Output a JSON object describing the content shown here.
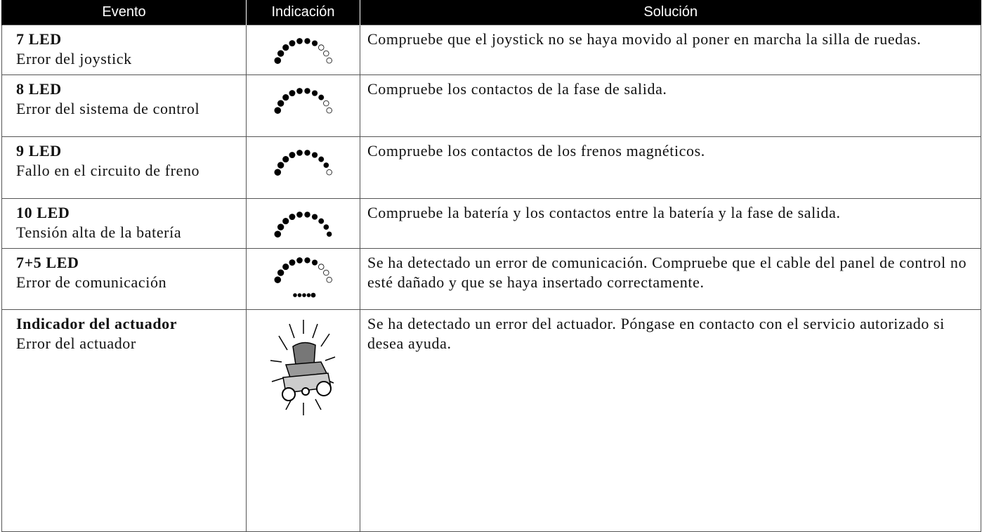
{
  "table": {
    "header": [
      "Evento",
      "Indicación",
      "Solución"
    ],
    "rows": [
      {
        "event": "7 LED",
        "description": "Error del joystick",
        "solution": "Compruebe que el joystick no se haya movido al poner en marcha la silla de ruedas."
      },
      {
        "event": "8 LED",
        "description": "Error del sistema de control",
        "solution": "Compruebe los contactos de la fase de salida."
      },
      {
        "event": "9 LED",
        "description": "Fallo en el circuito de freno",
        "solution": "Compruebe los contactos de los frenos magnéticos."
      },
      {
        "event": "10 LED",
        "description": "Tensión alta de la batería",
        "solution": "Compruebe la batería y los contactos entre la batería y la fase de salida."
      },
      {
        "event": "7+5 LED",
        "description": "Error de comunicación",
        "solution": "Se ha detectado un error de comunicación. Compruebe que el cable del panel de control no esté dañado y que se haya insertado correctamente."
      },
      {
        "event": "Indicador del actuador",
        "description": "Error del actuador",
        "solution": "Se ha detectado un error del actuador. Póngase en contacto con el servicio autorizado si desea ayuda."
      }
    ]
  }
}
